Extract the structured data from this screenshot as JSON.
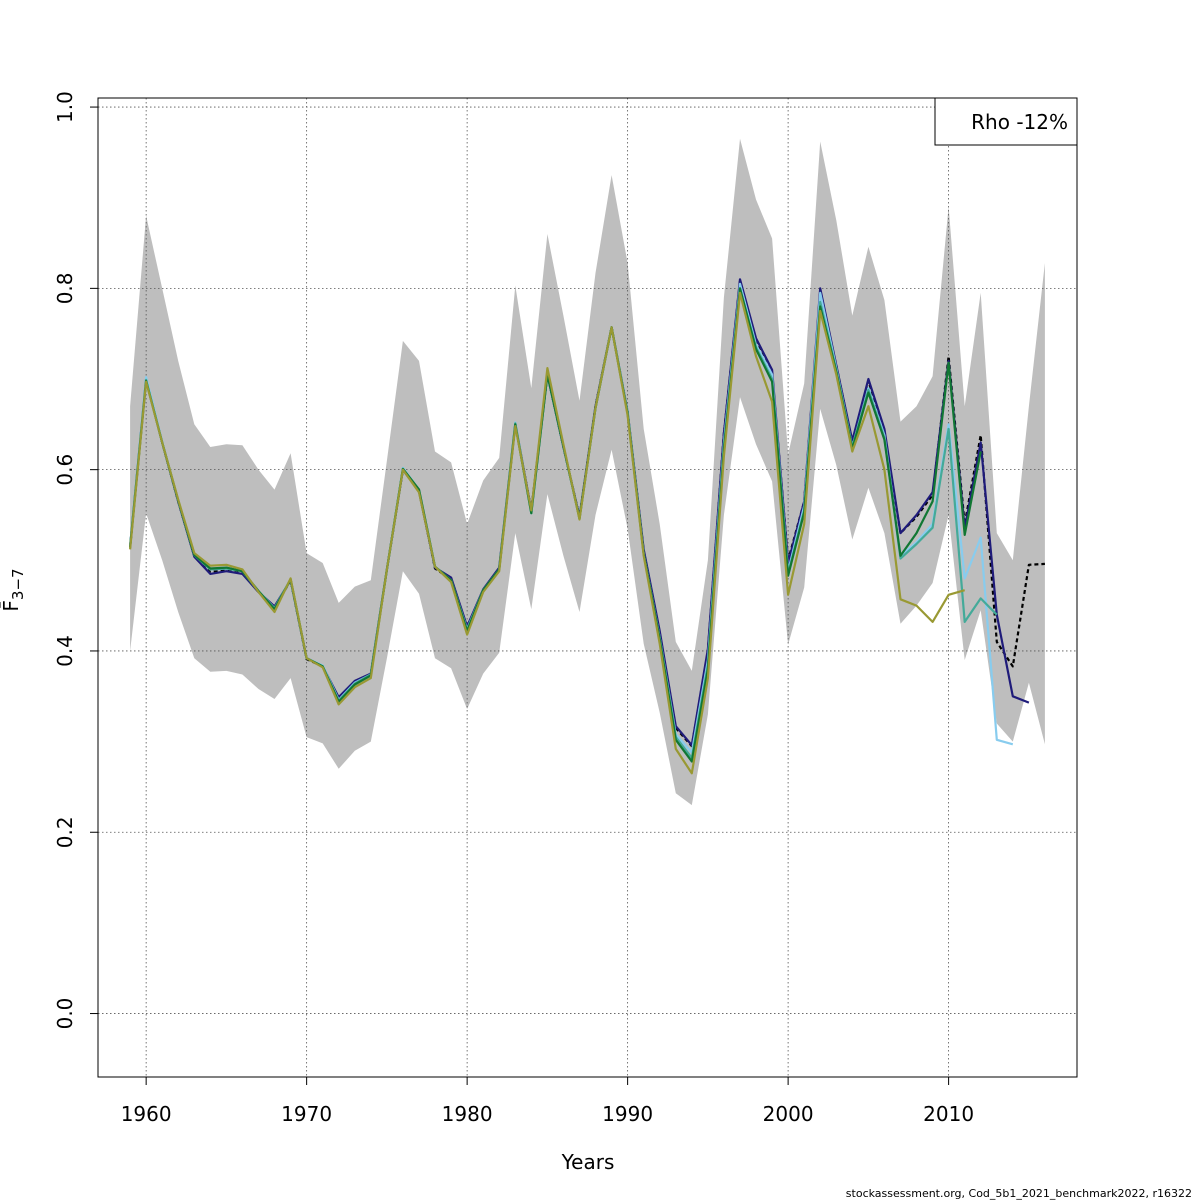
{
  "chart_data": {
    "type": "line",
    "xlabel": "Years",
    "ylabel": "F̄",
    "ylabel_subscript": "3−7",
    "xlim": [
      1957,
      2018
    ],
    "ylim": [
      -0.07,
      1.01
    ],
    "x_ticks": [
      1960,
      1970,
      1980,
      1990,
      2000,
      2010
    ],
    "x_tick_labels": [
      "1960",
      "1970",
      "1980",
      "1990",
      "2000",
      "2010"
    ],
    "y_ticks": [
      0.0,
      0.2,
      0.4,
      0.6,
      0.8,
      1.0
    ],
    "y_tick_labels": [
      "0.0",
      "0.2",
      "0.4",
      "0.6",
      "0.8",
      "1.0"
    ],
    "grid": true,
    "legend": {
      "text": "Rho -12%",
      "position": "top-right"
    },
    "footer": "stockassessment.org, Cod_5b1_2021_benchmark2022, r16322",
    "confidence_band": {
      "color": "#bebebe",
      "x": [
        1959,
        1960,
        1961,
        1962,
        1963,
        1964,
        1965,
        1966,
        1967,
        1968,
        1969,
        1970,
        1971,
        1972,
        1973,
        1974,
        1975,
        1976,
        1977,
        1978,
        1979,
        1980,
        1981,
        1982,
        1983,
        1984,
        1985,
        1986,
        1987,
        1988,
        1989,
        1990,
        1991,
        1992,
        1993,
        1994,
        1995,
        1996,
        1997,
        1998,
        1999,
        2000,
        2001,
        2002,
        2003,
        2004,
        2005,
        2006,
        2007,
        2008,
        2009,
        2010,
        2011,
        2012,
        2013,
        2014,
        2015,
        2016
      ],
      "upper": [
        0.67,
        0.88,
        0.8,
        0.72,
        0.65,
        0.625,
        0.628,
        0.627,
        0.6,
        0.578,
        0.618,
        0.508,
        0.497,
        0.453,
        0.471,
        0.478,
        0.61,
        0.742,
        0.72,
        0.62,
        0.608,
        0.54,
        0.588,
        0.613,
        0.803,
        0.69,
        0.86,
        0.77,
        0.676,
        0.817,
        0.925,
        0.828,
        0.645,
        0.54,
        0.41,
        0.378,
        0.5,
        0.79,
        0.965,
        0.898,
        0.855,
        0.617,
        0.695,
        0.962,
        0.875,
        0.77,
        0.846,
        0.787,
        0.653,
        0.67,
        0.703,
        0.89,
        0.67,
        0.795,
        0.53,
        0.5,
        0.67,
        0.828
      ],
      "lower": [
        0.4,
        0.552,
        0.5,
        0.443,
        0.392,
        0.377,
        0.378,
        0.374,
        0.358,
        0.347,
        0.37,
        0.305,
        0.298,
        0.27,
        0.29,
        0.3,
        0.392,
        0.488,
        0.463,
        0.392,
        0.381,
        0.336,
        0.375,
        0.398,
        0.53,
        0.446,
        0.573,
        0.505,
        0.443,
        0.55,
        0.622,
        0.535,
        0.408,
        0.332,
        0.243,
        0.23,
        0.33,
        0.55,
        0.68,
        0.628,
        0.587,
        0.407,
        0.47,
        0.667,
        0.605,
        0.523,
        0.58,
        0.53,
        0.43,
        0.45,
        0.475,
        0.55,
        0.39,
        0.445,
        0.32,
        0.3,
        0.365,
        0.297
      ]
    },
    "series": [
      {
        "color": "#000000",
        "dashed": true,
        "x": [
          1959,
          1960,
          1961,
          1962,
          1963,
          1964,
          1965,
          1966,
          1967,
          1968,
          1969,
          1970,
          1971,
          1972,
          1973,
          1974,
          1975,
          1976,
          1977,
          1978,
          1979,
          1980,
          1981,
          1982,
          1983,
          1984,
          1985,
          1986,
          1987,
          1988,
          1989,
          1990,
          1991,
          1992,
          1993,
          1994,
          1995,
          1996,
          1997,
          1998,
          1999,
          2000,
          2001,
          2002,
          2003,
          2004,
          2005,
          2006,
          2007,
          2008,
          2009,
          2010,
          2011,
          2012,
          2013,
          2014,
          2015,
          2016
        ],
        "values": [
          0.515,
          0.7,
          0.63,
          0.565,
          0.505,
          0.487,
          0.489,
          0.486,
          0.465,
          0.447,
          0.478,
          0.391,
          0.383,
          0.348,
          0.366,
          0.374,
          0.49,
          0.6,
          0.577,
          0.491,
          0.479,
          0.426,
          0.467,
          0.49,
          0.65,
          0.555,
          0.705,
          0.625,
          0.548,
          0.67,
          0.757,
          0.664,
          0.51,
          0.42,
          0.315,
          0.295,
          0.4,
          0.64,
          0.808,
          0.74,
          0.705,
          0.5,
          0.565,
          0.79,
          0.715,
          0.63,
          0.698,
          0.64,
          0.53,
          0.548,
          0.572,
          0.725,
          0.54,
          0.638,
          0.41,
          0.383,
          0.495,
          0.496
        ]
      },
      {
        "color": "#1f1b7a",
        "dashed": false,
        "x": [
          1959,
          1960,
          1961,
          1962,
          1963,
          1964,
          1965,
          1966,
          1967,
          1968,
          1969,
          1970,
          1971,
          1972,
          1973,
          1974,
          1975,
          1976,
          1977,
          1978,
          1979,
          1980,
          1981,
          1982,
          1983,
          1984,
          1985,
          1986,
          1987,
          1988,
          1989,
          1990,
          1991,
          1992,
          1993,
          1994,
          1995,
          1996,
          1997,
          1998,
          1999,
          2000,
          2001,
          2002,
          2003,
          2004,
          2005,
          2006,
          2007,
          2008,
          2009,
          2010,
          2011,
          2012,
          2013,
          2014,
          2015
        ],
        "values": [
          0.515,
          0.7,
          0.63,
          0.565,
          0.504,
          0.485,
          0.488,
          0.485,
          0.465,
          0.449,
          0.478,
          0.392,
          0.383,
          0.349,
          0.367,
          0.375,
          0.49,
          0.6,
          0.576,
          0.492,
          0.481,
          0.427,
          0.468,
          0.492,
          0.651,
          0.555,
          0.705,
          0.625,
          0.548,
          0.67,
          0.757,
          0.664,
          0.512,
          0.422,
          0.317,
          0.296,
          0.402,
          0.64,
          0.81,
          0.745,
          0.71,
          0.497,
          0.565,
          0.8,
          0.715,
          0.632,
          0.7,
          0.645,
          0.53,
          0.55,
          0.575,
          0.72,
          0.535,
          0.63,
          0.44,
          0.35,
          0.343
        ]
      },
      {
        "color": "#88ccee",
        "dashed": false,
        "x": [
          1959,
          1960,
          1961,
          1962,
          1963,
          1964,
          1965,
          1966,
          1967,
          1968,
          1969,
          1970,
          1971,
          1972,
          1973,
          1974,
          1975,
          1976,
          1977,
          1978,
          1979,
          1980,
          1981,
          1982,
          1983,
          1984,
          1985,
          1986,
          1987,
          1988,
          1989,
          1990,
          1991,
          1992,
          1993,
          1994,
          1995,
          1996,
          1997,
          1998,
          1999,
          2000,
          2001,
          2002,
          2003,
          2004,
          2005,
          2006,
          2007,
          2008,
          2009,
          2010,
          2011,
          2012,
          2013,
          2014
        ],
        "values": [
          0.516,
          0.702,
          0.631,
          0.566,
          0.506,
          0.49,
          0.491,
          0.488,
          0.466,
          0.447,
          0.479,
          0.392,
          0.384,
          0.346,
          0.365,
          0.374,
          0.49,
          0.602,
          0.578,
          0.493,
          0.478,
          0.424,
          0.467,
          0.49,
          0.652,
          0.552,
          0.706,
          0.626,
          0.546,
          0.668,
          0.757,
          0.664,
          0.507,
          0.415,
          0.308,
          0.288,
          0.39,
          0.63,
          0.805,
          0.738,
          0.705,
          0.488,
          0.56,
          0.795,
          0.712,
          0.625,
          0.69,
          0.638,
          0.505,
          0.52,
          0.54,
          0.65,
          0.48,
          0.525,
          0.302,
          0.297
        ]
      },
      {
        "color": "#44aa99",
        "dashed": false,
        "x": [
          1959,
          1960,
          1961,
          1962,
          1963,
          1964,
          1965,
          1966,
          1967,
          1968,
          1969,
          1970,
          1971,
          1972,
          1973,
          1974,
          1975,
          1976,
          1977,
          1978,
          1979,
          1980,
          1981,
          1982,
          1983,
          1984,
          1985,
          1986,
          1987,
          1988,
          1989,
          1990,
          1991,
          1992,
          1993,
          1994,
          1995,
          1996,
          1997,
          1998,
          1999,
          2000,
          2001,
          2002,
          2003,
          2004,
          2005,
          2006,
          2007,
          2008,
          2009,
          2010,
          2011,
          2012,
          2013
        ],
        "values": [
          0.515,
          0.699,
          0.63,
          0.566,
          0.506,
          0.49,
          0.491,
          0.488,
          0.466,
          0.447,
          0.479,
          0.392,
          0.383,
          0.345,
          0.364,
          0.374,
          0.49,
          0.601,
          0.578,
          0.493,
          0.478,
          0.423,
          0.467,
          0.49,
          0.651,
          0.552,
          0.705,
          0.626,
          0.546,
          0.668,
          0.757,
          0.663,
          0.507,
          0.414,
          0.305,
          0.282,
          0.385,
          0.625,
          0.8,
          0.735,
          0.7,
          0.485,
          0.555,
          0.785,
          0.71,
          0.625,
          0.688,
          0.635,
          0.502,
          0.518,
          0.536,
          0.645,
          0.432,
          0.458,
          0.44
        ]
      },
      {
        "color": "#117733",
        "dashed": false,
        "x": [
          1959,
          1960,
          1961,
          1962,
          1963,
          1964,
          1965,
          1966,
          1967,
          1968,
          1969,
          1970,
          1971,
          1972,
          1973,
          1974,
          1975,
          1976,
          1977,
          1978,
          1979,
          1980,
          1981,
          1982,
          1983,
          1984,
          1985,
          1986,
          1987,
          1988,
          1989,
          1990,
          1991,
          1992,
          1993,
          1994,
          1995,
          1996,
          1997,
          1998,
          1999,
          2000,
          2001,
          2002,
          2003,
          2004,
          2005,
          2006,
          2007,
          2008,
          2009,
          2010,
          2011,
          2012
        ],
        "values": [
          0.514,
          0.698,
          0.63,
          0.566,
          0.506,
          0.491,
          0.492,
          0.488,
          0.466,
          0.446,
          0.479,
          0.392,
          0.383,
          0.344,
          0.363,
          0.373,
          0.49,
          0.601,
          0.578,
          0.493,
          0.478,
          0.422,
          0.467,
          0.49,
          0.65,
          0.552,
          0.705,
          0.626,
          0.546,
          0.668,
          0.757,
          0.662,
          0.507,
          0.413,
          0.302,
          0.278,
          0.38,
          0.622,
          0.8,
          0.733,
          0.697,
          0.483,
          0.553,
          0.78,
          0.708,
          0.623,
          0.685,
          0.633,
          0.505,
          0.53,
          0.565,
          0.718,
          0.528,
          0.62
        ]
      },
      {
        "color": "#999933",
        "dashed": false,
        "x": [
          1959,
          1960,
          1961,
          1962,
          1963,
          1964,
          1965,
          1966,
          1967,
          1968,
          1969,
          1970,
          1971,
          1972,
          1973,
          1974,
          1975,
          1976,
          1977,
          1978,
          1979,
          1980,
          1981,
          1982,
          1983,
          1984,
          1985,
          1986,
          1987,
          1988,
          1989,
          1990,
          1991,
          1992,
          1993,
          1994,
          1995,
          1996,
          1997,
          1998,
          1999,
          2000,
          2001,
          2002,
          2003,
          2004,
          2005,
          2006,
          2007,
          2008,
          2009,
          2010,
          2011
        ],
        "values": [
          0.512,
          0.697,
          0.63,
          0.567,
          0.508,
          0.494,
          0.495,
          0.49,
          0.465,
          0.443,
          0.48,
          0.392,
          0.382,
          0.341,
          0.36,
          0.37,
          0.49,
          0.6,
          0.575,
          0.493,
          0.476,
          0.418,
          0.465,
          0.488,
          0.648,
          0.555,
          0.712,
          0.628,
          0.545,
          0.668,
          0.757,
          0.66,
          0.505,
          0.408,
          0.292,
          0.265,
          0.37,
          0.615,
          0.795,
          0.725,
          0.675,
          0.462,
          0.54,
          0.775,
          0.705,
          0.62,
          0.67,
          0.6,
          0.457,
          0.45,
          0.432,
          0.462,
          0.467
        ]
      }
    ]
  }
}
